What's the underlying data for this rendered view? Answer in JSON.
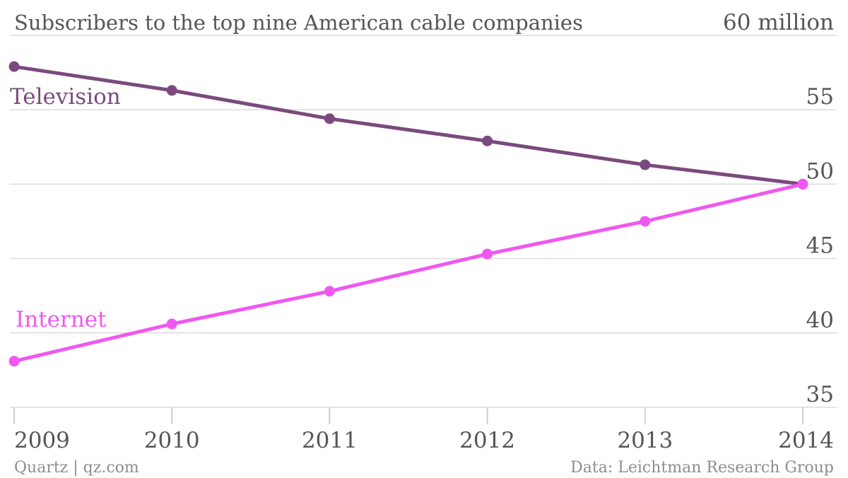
{
  "title": "Subscribers to the top nine American cable companies",
  "y_unit_label": "60 million",
  "footer_left": "Quartz | qz.com",
  "footer_right": "Data: Leichtman Research Group",
  "chart_data": {
    "type": "line",
    "title": "Subscribers to the top nine American cable companies",
    "x": [
      "2009",
      "2010",
      "2011",
      "2012",
      "2013",
      "2014"
    ],
    "ylim": [
      35,
      60
    ],
    "y_ticks": [
      60,
      55,
      50,
      45,
      40,
      35
    ],
    "y_tick_labels": [
      "60 million",
      "55",
      "50",
      "45",
      "40",
      "35"
    ],
    "grid": true,
    "legend": "inline labels",
    "series": [
      {
        "name": "Television",
        "color": "#7a4a7e",
        "values": [
          57.9,
          56.3,
          54.4,
          52.9,
          51.3,
          50.0
        ]
      },
      {
        "name": "Internet",
        "color": "#f057f0",
        "values": [
          38.1,
          40.6,
          42.8,
          45.3,
          47.5,
          50.0
        ]
      }
    ]
  }
}
